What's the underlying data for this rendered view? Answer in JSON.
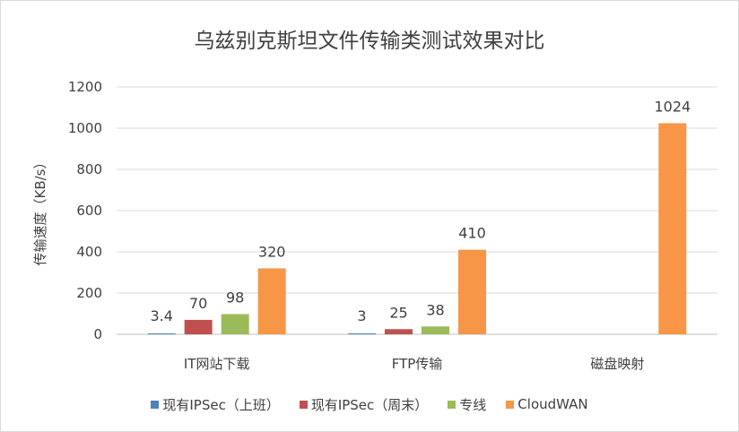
{
  "chart_data": {
    "type": "bar",
    "title": "乌兹别克斯坦文件传输类测试效果对比",
    "ylabel": "传输速度（KB/s）",
    "xlabel": "",
    "ylim": [
      0,
      1200
    ],
    "yticks": [
      0,
      200,
      400,
      600,
      800,
      1000,
      1200
    ],
    "grid": true,
    "legend_position": "bottom",
    "categories": [
      "IT网站下载",
      "FTP传输",
      "磁盘映射"
    ],
    "series": [
      {
        "name": "现有IPSec（上班）",
        "color": "#4f81bd",
        "values": [
          3.4,
          3,
          null
        ]
      },
      {
        "name": "现有IPSec（周末）",
        "color": "#c0504d",
        "values": [
          70,
          25,
          null
        ]
      },
      {
        "name": "专线",
        "color": "#9bbb59",
        "values": [
          98,
          38,
          null
        ]
      },
      {
        "name": "CloudWAN",
        "color": "#f79646",
        "values": [
          320,
          410,
          1024
        ]
      }
    ]
  }
}
